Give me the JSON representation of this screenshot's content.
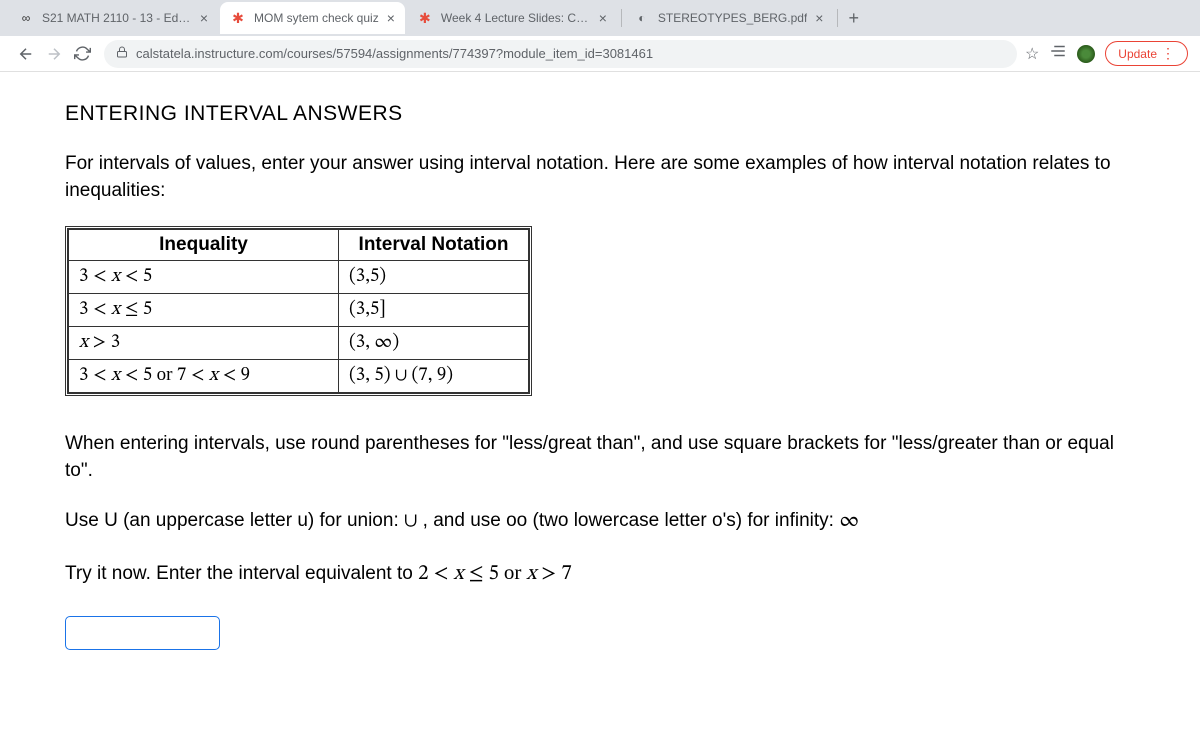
{
  "tabs": [
    {
      "title": "S21 MATH 2110 - 13 - Edfinity",
      "favicon": "∞",
      "favicon_color": "#333333",
      "active": false
    },
    {
      "title": "MOM sytem check quiz",
      "favicon": "✱",
      "favicon_color": "#e74c3c",
      "active": true
    },
    {
      "title": "Week 4 Lecture Slides: CLS 20",
      "favicon": "✱",
      "favicon_color": "#e74c3c",
      "active": false
    },
    {
      "title": "STEREOTYPES_BERG.pdf",
      "favicon": "◐",
      "favicon_color": "#5f6368",
      "active": false
    }
  ],
  "url": "calstatela.instructure.com/courses/57594/assignments/774397?module_item_id=3081461",
  "update_label": "Update",
  "heading": "ENTERING INTERVAL ANSWERS",
  "intro": "For intervals of values, enter your answer using interval notation. Here are some examples of how interval notation relates to inequalities:",
  "table": {
    "headers": [
      "Inequality",
      "Interval Notation"
    ],
    "rows": [
      {
        "ineq_html": "3 < <i>x</i> < 5",
        "interval": "(3,5)"
      },
      {
        "ineq_html": "3 < <i>x</i> ≤ 5",
        "interval": "(3,5]"
      },
      {
        "ineq_html": "<i>x</i> > 3",
        "interval": "(3, ∞)"
      },
      {
        "ineq_html": "3 < <i>x</i> < 5 <span style='font-family:Verdana'>or</span> 7 < <i>x</i> < 9",
        "interval": "(3, 5) ∪ (7, 9)"
      }
    ]
  },
  "para2": "When entering intervals, use round parentheses for \"less/great than\", and use square brackets for \"less/greater than or equal to\".",
  "para3_prefix": "Use U (an uppercase letter u) for union: ",
  "para3_union": "∪",
  "para3_mid": " , and use oo (two lowercase letter o's) for infinity: ",
  "para3_inf": "∞",
  "prompt_prefix": "Try it now. Enter the interval equivalent to ",
  "prompt_math_html": "2 < <i>x</i> ≤ 5 <span style='font-family:Verdana'>or</span> <i>x</i> > 7",
  "colors": {
    "tab_bg": "#dee1e6",
    "accent": "#1a73e8",
    "update_border": "#ea4335"
  }
}
